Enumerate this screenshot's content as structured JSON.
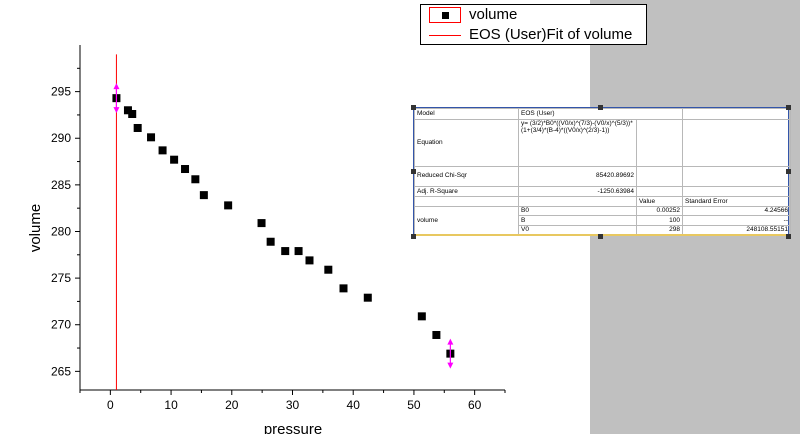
{
  "legend": {
    "items": [
      {
        "label": "volume",
        "symbol": "square"
      },
      {
        "label": "EOS (User)Fit of volume",
        "symbol": "line"
      }
    ]
  },
  "chart_data": {
    "type": "scatter",
    "xlabel": "pressure",
    "ylabel": "volume",
    "xlim": [
      -5,
      65
    ],
    "ylim": [
      263,
      300
    ],
    "x_ticks": [
      0,
      10,
      20,
      30,
      40,
      50,
      60
    ],
    "y_ticks": [
      265,
      270,
      275,
      280,
      285,
      290,
      295
    ],
    "series": [
      {
        "name": "volume",
        "marker": "square",
        "color": "#000000",
        "x": [
          1.0,
          2.9,
          3.6,
          4.5,
          6.7,
          8.6,
          10.5,
          12.3,
          14.0,
          15.4,
          19.4,
          24.9,
          26.4,
          28.8,
          31.0,
          32.8,
          35.9,
          38.4,
          42.4,
          51.3,
          53.7,
          56.0
        ],
        "y": [
          294.3,
          293.0,
          292.6,
          291.1,
          290.1,
          288.7,
          287.7,
          286.7,
          285.6,
          283.9,
          282.8,
          280.9,
          278.9,
          277.9,
          277.9,
          276.9,
          275.9,
          273.9,
          272.9,
          270.9,
          268.9,
          266.9
        ]
      },
      {
        "name": "EOS (User)Fit of volume",
        "type": "line",
        "color": "#ff0000",
        "x": [
          1.0,
          1.0
        ],
        "y": [
          263,
          299
        ]
      }
    ],
    "markers_highlight": [
      {
        "x": 1.0,
        "y": 294.3,
        "color": "#ff00ff"
      },
      {
        "x": 56.0,
        "y": 266.9,
        "color": "#ff00ff"
      }
    ]
  },
  "fit_table": {
    "model_label": "Model",
    "model_value": "EOS (User)",
    "equation_label": "Equation",
    "equation_value": "y= (3/2)*B0*((V0/x)^(7/3)-(V0/x)^(5/3))*(1+(3/4)*(B-4)*((V0/x)^(2/3)-1))",
    "chisqr_label": "Reduced Chi-Sqr",
    "chisqr_value": "85420.89692",
    "r2_label": "Adj. R-Square",
    "r2_value": "-1250.63984",
    "col_value": "Value",
    "col_error": "Standard Error",
    "param_group": "volume",
    "params": [
      {
        "name": "B0",
        "value": "0.00252",
        "error": "4.24566"
      },
      {
        "name": "B",
        "value": "100",
        "error": "--"
      },
      {
        "name": "V0",
        "value": "298",
        "error": "248108.55151"
      }
    ]
  }
}
